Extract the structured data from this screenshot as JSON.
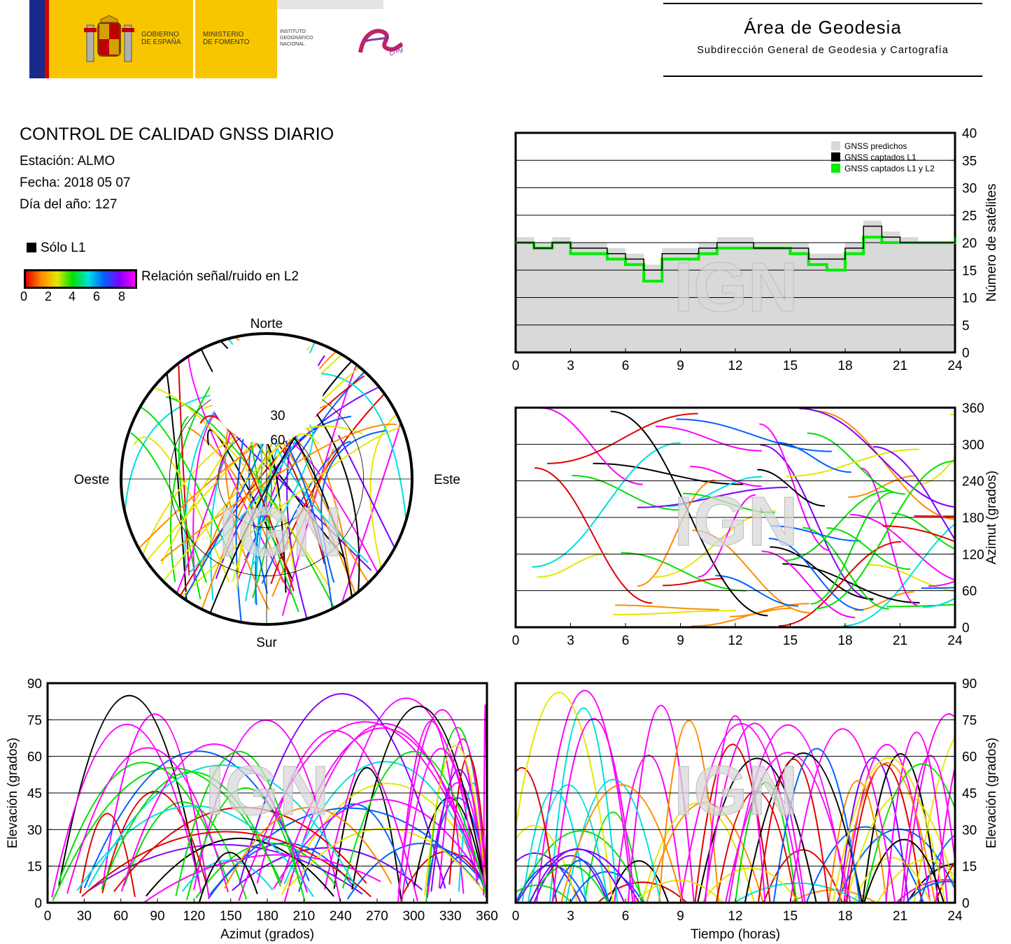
{
  "header": {
    "gobierno": [
      "GOBIERNO",
      "DE ESPAÑA"
    ],
    "ministerio": [
      "MINISTERIO",
      "DE FOMENTO"
    ],
    "instituto": [
      "INSTITUTO",
      "GEOGRÁFICO",
      "NACIONAL"
    ],
    "cnig": "cnig",
    "area_title": "Área de Geodesia",
    "area_subtitle": "Subdirección General de Geodesia y Cartografía"
  },
  "info": {
    "title": "CONTROL DE CALIDAD GNSS DIARIO",
    "station": "Estación: ALMO",
    "date": "Fecha: 2018 05 07",
    "doy": "Día del año: 127"
  },
  "legend": {
    "solo_l1": "Sólo L1",
    "snr_label": "Relación señal/ruido en L2",
    "snr_ticks": [
      "0",
      "2",
      "4",
      "6",
      "8"
    ],
    "snr_colors": [
      "#e00000",
      "#ff8c00",
      "#e6e600",
      "#00e000",
      "#00e0e0",
      "#0060ff",
      "#8000ff",
      "#ff00ff"
    ]
  },
  "watermark": "IGN",
  "colors": {
    "predicted": "#d9d9d9",
    "l1": "#000000",
    "l1l2": "#00ee00"
  },
  "chart_data": [
    {
      "id": "satellites",
      "type": "area",
      "xlabel": "",
      "ylabel": "Número de satélites",
      "xlim": [
        0,
        24
      ],
      "ylim": [
        0,
        40
      ],
      "xticks": [
        "0",
        "3",
        "6",
        "9",
        "12",
        "15",
        "18",
        "21",
        "24"
      ],
      "yticks": [
        "0",
        "5",
        "10",
        "15",
        "20",
        "25",
        "30",
        "35",
        "40"
      ],
      "grid": true,
      "legend_position": "top-right",
      "x": [
        0,
        1,
        2,
        3,
        4,
        5,
        6,
        7,
        8,
        9,
        10,
        11,
        12,
        13,
        14,
        15,
        16,
        17,
        18,
        19,
        20,
        21,
        22,
        23,
        24
      ],
      "series": [
        {
          "name": "GNSS predichos",
          "values": [
            21,
            20,
            21,
            20,
            20,
            19,
            18,
            16,
            19,
            19,
            20,
            21,
            21,
            20,
            20,
            20,
            18,
            18,
            20,
            24,
            22,
            21,
            20,
            20,
            21
          ]
        },
        {
          "name": "GNSS captados L1",
          "values": [
            20,
            19,
            20,
            19,
            19,
            18,
            17,
            15,
            18,
            18,
            19,
            20,
            20,
            19,
            19,
            19,
            17,
            17,
            19,
            23,
            21,
            20,
            20,
            20,
            21
          ]
        },
        {
          "name": "GNSS captados L1 y L2",
          "values": [
            20,
            19,
            20,
            18,
            18,
            17,
            16,
            13,
            17,
            17,
            18,
            19,
            19,
            19,
            19,
            18,
            16,
            15,
            18,
            21,
            20,
            20,
            20,
            20,
            21
          ]
        }
      ]
    },
    {
      "id": "skyplot",
      "type": "scatter",
      "title": "",
      "labels": {
        "north": "Norte",
        "south": "Sur",
        "east": "Este",
        "west": "Oeste"
      },
      "elevation_rings": [
        "30",
        "60"
      ]
    },
    {
      "id": "azimuth_time",
      "type": "scatter",
      "xlabel": "",
      "ylabel": "Azimut (grados)",
      "xlim": [
        0,
        24
      ],
      "ylim": [
        0,
        360
      ],
      "xticks": [
        "0",
        "3",
        "6",
        "9",
        "12",
        "15",
        "18",
        "21",
        "24"
      ],
      "yticks": [
        "0",
        "60",
        "120",
        "180",
        "240",
        "300",
        "360"
      ],
      "grid": true
    },
    {
      "id": "elevation_azimuth",
      "type": "scatter",
      "xlabel": "Azimut (grados)",
      "ylabel": "Elevación (grados)",
      "xlim": [
        0,
        360
      ],
      "ylim": [
        0,
        90
      ],
      "xticks": [
        "0",
        "30",
        "60",
        "90",
        "120",
        "150",
        "180",
        "210",
        "240",
        "270",
        "300",
        "330",
        "360"
      ],
      "yticks": [
        "0",
        "15",
        "30",
        "45",
        "60",
        "75",
        "90"
      ],
      "grid": true
    },
    {
      "id": "elevation_time",
      "type": "scatter",
      "xlabel": "Tiempo (horas)",
      "ylabel": "Elevación (grados)",
      "xlim": [
        0,
        24
      ],
      "ylim": [
        0,
        90
      ],
      "xticks": [
        "0",
        "3",
        "6",
        "9",
        "12",
        "15",
        "18",
        "21",
        "24"
      ],
      "yticks": [
        "0",
        "15",
        "30",
        "45",
        "60",
        "75",
        "90"
      ],
      "grid": true
    }
  ]
}
